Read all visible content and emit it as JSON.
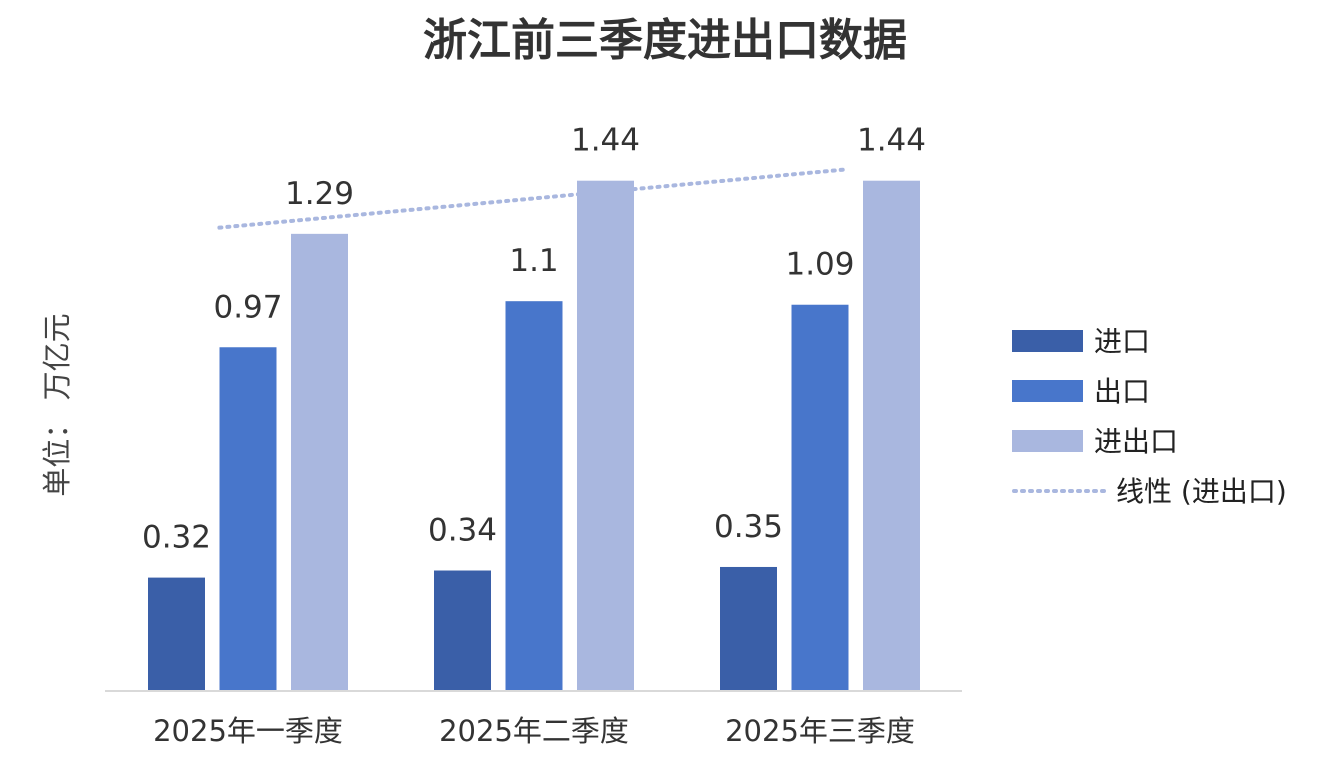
{
  "chart_data": {
    "type": "bar",
    "title": "浙江前三季度进出口数据",
    "ylabel": "单位： 万亿元",
    "xlabel": "",
    "categories": [
      "2025年一季度",
      "2025年二季度",
      "2025年三季度"
    ],
    "series": [
      {
        "name": "进口",
        "values": [
          0.32,
          0.34,
          0.35
        ],
        "color": "#3a5fa8"
      },
      {
        "name": "出口",
        "values": [
          0.97,
          1.1,
          1.09
        ],
        "color": "#4876cb"
      },
      {
        "name": "进出口",
        "values": [
          1.29,
          1.44,
          1.44
        ],
        "color": "#a9b7df"
      }
    ],
    "trendline": {
      "name": "线性 (进出口)",
      "type": "linear",
      "series": "进出口",
      "style": "dotted",
      "color": "#a9b7df"
    },
    "ylim": [
      0,
      1.6
    ],
    "grid": false,
    "legend_position": "right"
  }
}
